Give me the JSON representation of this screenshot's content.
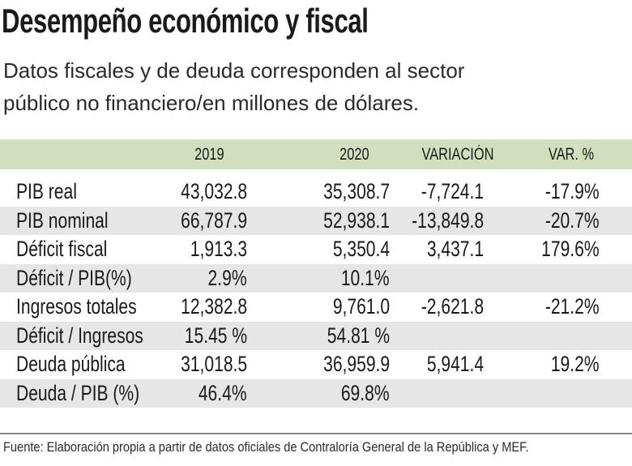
{
  "title": "Desempeño económico y fiscal",
  "subtitle_lines": [
    "Datos fiscales y de deuda corresponden al sector",
    "público no financiero/en millones de dólares."
  ],
  "source": "Fuente: Elaboración propia a partir de datos oficiales de Contraloría General de la República y MEF.",
  "colors": {
    "header_band": "#d2dfbf",
    "alt_row": "#e6e6e6"
  },
  "chart_data": {
    "type": "table",
    "columns": [
      "",
      "2019",
      "2020",
      "VARIACIÓN",
      "VAR. %"
    ],
    "rows": [
      [
        "PIB real",
        "43,032.8",
        "35,308.7",
        "-7,724.1",
        "-17.9%"
      ],
      [
        "PIB nominal",
        "66,787.9",
        "52,938.1",
        "-13,849.8",
        "-20.7%"
      ],
      [
        "Déficit fiscal",
        "1,913.3",
        "5,350.4",
        "3,437.1",
        "179.6%"
      ],
      [
        "Déficit / PIB(%)",
        "2.9%",
        "10.1%",
        "",
        ""
      ],
      [
        "Ingresos totales",
        "12,382.8",
        "9,761.0",
        "-2,621.8",
        "-21.2%"
      ],
      [
        "Déficit / Ingresos",
        "15.45 %",
        "54.81 %",
        "",
        ""
      ],
      [
        "Deuda pública",
        "31,018.5",
        "36,959.9",
        "5,941.4",
        "19.2%"
      ],
      [
        "Deuda / PIB (%)",
        "46.4%",
        "69.8%",
        "",
        ""
      ]
    ]
  }
}
